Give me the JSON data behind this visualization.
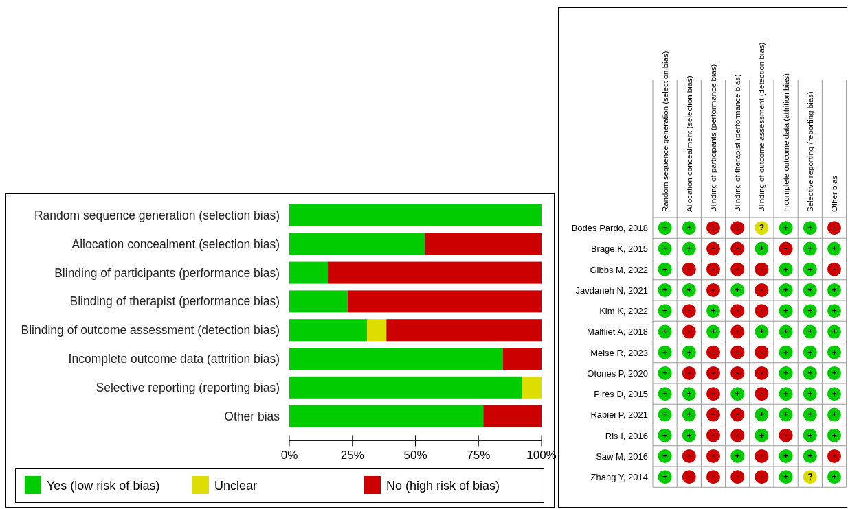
{
  "chart_data": [
    {
      "type": "bar",
      "orientation": "horizontal",
      "stacked": true,
      "categories": [
        "Random sequence generation (selection bias)",
        "Allocation concealment (selection bias)",
        "Blinding of participants (performance bias)",
        "Blinding of therapist (performance bias)",
        "Blinding of outcome assessment (detection bias)",
        "Incomplete outcome data (attrition bias)",
        "Selective reporting (reporting bias)",
        "Other bias"
      ],
      "series": [
        {
          "name": "Yes (low risk of bias)",
          "color": "#00cc00",
          "values": [
            100,
            53.8,
            15.4,
            23.1,
            30.8,
            84.6,
            92.3,
            76.9
          ]
        },
        {
          "name": "Unclear",
          "color": "#dddd00",
          "values": [
            0,
            0,
            0,
            0,
            7.7,
            0,
            7.7,
            0
          ]
        },
        {
          "name": "No (high risk of bias)",
          "color": "#cc0000",
          "values": [
            0,
            46.2,
            84.6,
            76.9,
            61.5,
            15.4,
            0,
            23.1
          ]
        }
      ],
      "xlim": [
        0,
        100
      ],
      "xticks": [
        {
          "value": 0,
          "label": "0%"
        },
        {
          "value": 25,
          "label": "25%"
        },
        {
          "value": 50,
          "label": "50%"
        },
        {
          "value": 75,
          "label": "75%"
        },
        {
          "value": 100,
          "label": "100%"
        }
      ],
      "grid": false,
      "legend": "bottom"
    },
    {
      "type": "heatmap",
      "categories": [
        "Random sequence generation (selection bias)",
        "Allocation concealment (selection bias)",
        "Blinding of participants (performance bias)",
        "Blinding of therapist (performance bias)",
        "Blinding of outcome assessment (detection bias)",
        "Incomplete outcome data (attrition bias)",
        "Selective reporting (reporting bias)",
        "Other bias"
      ],
      "y_categories": [
        "Bodes Pardo, 2018",
        "Brage K, 2015",
        "Gibbs M, 2022",
        "Javdaneh N, 2021",
        "Kim K, 2022",
        "Malfliet A, 2018",
        "Meise R, 2023",
        "Otones P, 2020",
        "Pires D, 2015",
        "Rabiei P, 2021",
        "Ris I, 2016",
        "Saw M, 2016",
        "Zhang Y, 2014"
      ],
      "cells": [
        [
          "+",
          "+",
          "-",
          "-",
          "?",
          "+",
          "+",
          "-"
        ],
        [
          "+",
          "+",
          "-",
          "-",
          "+",
          "-",
          "+",
          "+"
        ],
        [
          "+",
          "-",
          "-",
          "-",
          "-",
          "+",
          "+",
          "-"
        ],
        [
          "+",
          "+",
          "-",
          "+",
          "-",
          "+",
          "+",
          "+"
        ],
        [
          "+",
          "-",
          "+",
          "-",
          "-",
          "+",
          "+",
          "+"
        ],
        [
          "+",
          "-",
          "+",
          "-",
          "+",
          "+",
          "+",
          "+"
        ],
        [
          "+",
          "+",
          "-",
          "-",
          "-",
          "+",
          "+",
          "+"
        ],
        [
          "+",
          "-",
          "-",
          "-",
          "-",
          "+",
          "+",
          "+"
        ],
        [
          "+",
          "+",
          "-",
          "+",
          "-",
          "+",
          "+",
          "+"
        ],
        [
          "+",
          "+",
          "-",
          "-",
          "+",
          "+",
          "+",
          "+"
        ],
        [
          "+",
          "+",
          "-",
          "-",
          "+",
          "-",
          "+",
          "+"
        ],
        [
          "+",
          "-",
          "-",
          "+",
          "-",
          "+",
          "+",
          "-"
        ],
        [
          "+",
          "-",
          "-",
          "-",
          "-",
          "+",
          "?",
          "+"
        ]
      ],
      "colors": [
        [
          "#00cc00",
          "#00cc00",
          "#cc0000",
          "#cc0000",
          "#dddd00",
          "#00cc00",
          "#00cc00",
          "#cc0000"
        ],
        [
          "#00cc00",
          "#00cc00",
          "#cc0000",
          "#cc0000",
          "#00cc00",
          "#cc0000",
          "#00cc00",
          "#00cc00"
        ],
        [
          "#00cc00",
          "#cc0000",
          "#cc0000",
          "#cc0000",
          "#cc0000",
          "#00cc00",
          "#00cc00",
          "#cc0000"
        ],
        [
          "#00cc00",
          "#00cc00",
          "#cc0000",
          "#00cc00",
          "#cc0000",
          "#00cc00",
          "#00cc00",
          "#00cc00"
        ],
        [
          "#00cc00",
          "#cc0000",
          "#00cc00",
          "#cc0000",
          "#cc0000",
          "#00cc00",
          "#00cc00",
          "#00cc00"
        ],
        [
          "#00cc00",
          "#cc0000",
          "#00cc00",
          "#cc0000",
          "#00cc00",
          "#00cc00",
          "#00cc00",
          "#00cc00"
        ],
        [
          "#00cc00",
          "#00cc00",
          "#cc0000",
          "#cc0000",
          "#cc0000",
          "#00cc00",
          "#00cc00",
          "#00cc00"
        ],
        [
          "#00cc00",
          "#cc0000",
          "#cc0000",
          "#cc0000",
          "#cc0000",
          "#00cc00",
          "#00cc00",
          "#00cc00"
        ],
        [
          "#00cc00",
          "#00cc00",
          "#cc0000",
          "#00cc00",
          "#cc0000",
          "#00cc00",
          "#00cc00",
          "#00cc00"
        ],
        [
          "#00cc00",
          "#00cc00",
          "#cc0000",
          "#cc0000",
          "#00cc00",
          "#00cc00",
          "#00cc00",
          "#00cc00"
        ],
        [
          "#00cc00",
          "#00cc00",
          "#cc0000",
          "#cc0000",
          "#00cc00",
          "#cc0000",
          "#00cc00",
          "#00cc00"
        ],
        [
          "#00cc00",
          "#cc0000",
          "#cc0000",
          "#00cc00",
          "#cc0000",
          "#00cc00",
          "#00cc00",
          "#cc0000"
        ],
        [
          "#00cc00",
          "#cc0000",
          "#cc0000",
          "#cc0000",
          "#cc0000",
          "#00cc00",
          "#dddd00",
          "#00cc00"
        ]
      ]
    }
  ]
}
